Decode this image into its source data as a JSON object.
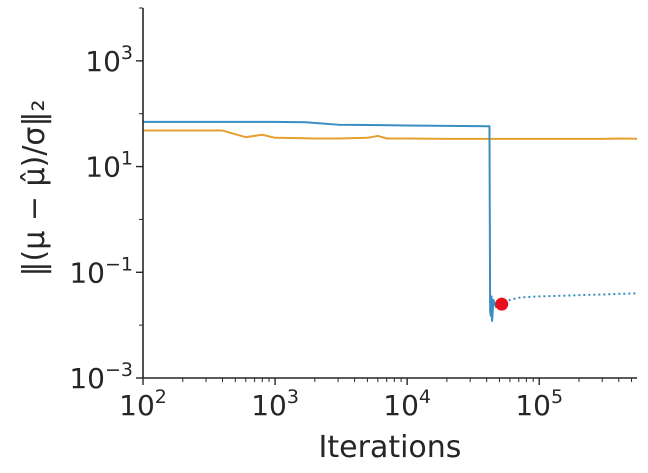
{
  "chart_data": {
    "type": "line",
    "title": "",
    "xlabel": "Iterations",
    "ylabel": "‖(μ − μ̂)/σ‖₂",
    "xscale": "log",
    "yscale": "log",
    "xlim": [
      100,
      550000
    ],
    "ylim": [
      0.001,
      10000
    ],
    "grid": false,
    "legend": "none",
    "x_ticks": [
      {
        "base": "10",
        "exp": "2",
        "value": 100
      },
      {
        "base": "10",
        "exp": "3",
        "value": 1000
      },
      {
        "base": "10",
        "exp": "4",
        "value": 10000
      },
      {
        "base": "10",
        "exp": "5",
        "value": 100000
      }
    ],
    "y_ticks": [
      {
        "base": "10",
        "exp": "−3",
        "value": 0.001
      },
      {
        "base": "10",
        "exp": "−1",
        "value": 0.1
      },
      {
        "base": "10",
        "exp": "1",
        "value": 10
      },
      {
        "base": "10",
        "exp": "3",
        "value": 1000
      }
    ],
    "series": [
      {
        "color": "#e69f2e",
        "style": "solid",
        "x": [
          100,
          200,
          400,
          600,
          800,
          1000,
          1500,
          2000,
          3000,
          5000,
          6000,
          7000,
          10000,
          20000,
          40000,
          60000,
          100000,
          200000,
          300000,
          400000,
          550000
        ],
        "y": [
          48,
          48,
          48,
          36,
          40,
          35,
          34.5,
          34,
          34,
          35,
          38,
          34,
          34,
          33.5,
          33.5,
          33.5,
          33.5,
          33.5,
          33.5,
          34,
          33.5
        ]
      },
      {
        "color": "#3a8ebf",
        "style": "solid",
        "x": [
          100,
          1000,
          1700,
          3000,
          10000,
          20000,
          42000,
          42500,
          43000,
          43500,
          44000,
          45000,
          47000,
          50000
        ],
        "y": [
          70,
          70,
          69,
          62,
          60,
          59,
          58,
          0.018,
          0.015,
          0.035,
          0.012,
          0.03,
          0.022,
          0.025
        ]
      },
      {
        "color": "#3a8ebf",
        "style": "dotted",
        "x": [
          50000,
          60000,
          70000,
          80000,
          100000,
          150000,
          200000,
          300000,
          400000,
          550000
        ],
        "y": [
          0.025,
          0.03,
          0.033,
          0.034,
          0.035,
          0.036,
          0.037,
          0.038,
          0.039,
          0.04
        ]
      }
    ],
    "annotations": [
      {
        "type": "marker",
        "x": 52000,
        "y": 0.025,
        "color": "#e8101e"
      }
    ]
  }
}
